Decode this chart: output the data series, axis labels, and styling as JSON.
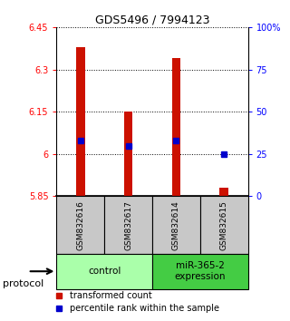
{
  "title": "GDS5496 / 7994123",
  "samples": [
    "GSM832616",
    "GSM832617",
    "GSM832614",
    "GSM832615"
  ],
  "groups": [
    {
      "name": "control",
      "color": "#aaffaa",
      "start": 0,
      "end": 1
    },
    {
      "name": "miR-365-2\nexpression",
      "color": "#44cc44",
      "start": 2,
      "end": 3
    }
  ],
  "transformed_counts": [
    6.38,
    6.15,
    6.34,
    5.88
  ],
  "percentile_ranks": [
    33,
    30,
    33,
    25
  ],
  "ylim_left": [
    5.85,
    6.45
  ],
  "ylim_right": [
    0,
    100
  ],
  "yticks_left": [
    5.85,
    6.0,
    6.15,
    6.3,
    6.45
  ],
  "ytick_labels_left": [
    "5.85",
    "6",
    "6.15",
    "6.3",
    "6.45"
  ],
  "yticks_right": [
    0,
    25,
    50,
    75,
    100
  ],
  "ytick_labels_right": [
    "0",
    "25",
    "50",
    "75",
    "100%"
  ],
  "bar_color": "#cc1100",
  "dot_color": "#0000cc",
  "bar_width": 0.18,
  "title_fontsize": 9,
  "tick_fontsize": 7,
  "sample_fontsize": 6.5,
  "group_fontsize": 7.5,
  "legend_fontsize": 7,
  "protocol_text": "protocol",
  "legend_red_label": "transformed count",
  "legend_blue_label": "percentile rank within the sample"
}
